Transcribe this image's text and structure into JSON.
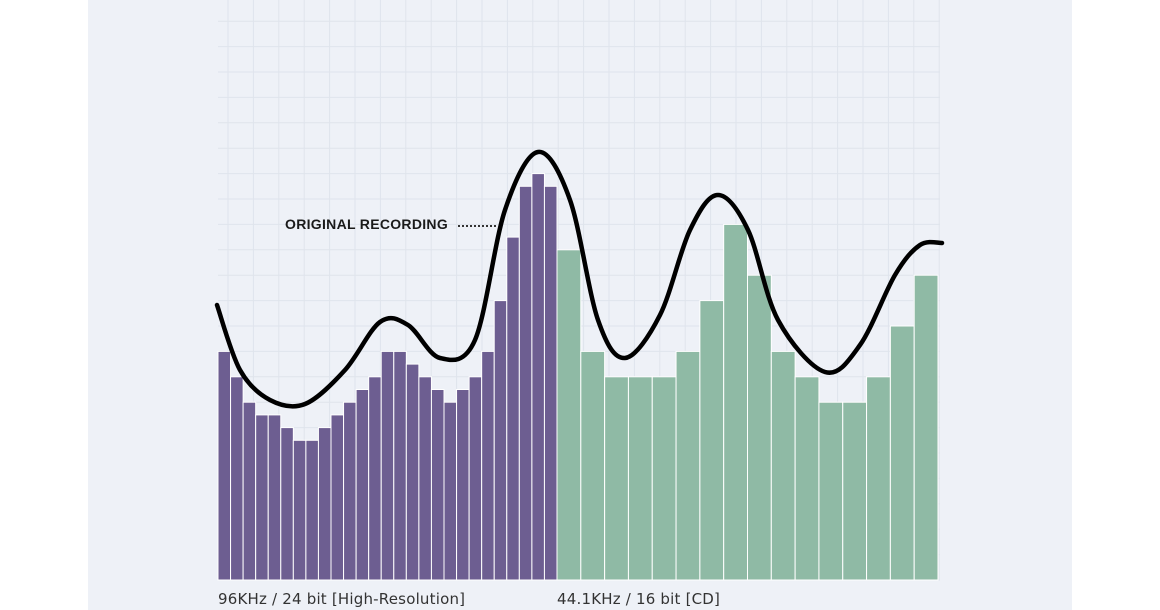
{
  "chart_data": {
    "type": "bar",
    "annotation": "ORIGINAL RECORDING",
    "colors": {
      "background": "#eef1f7",
      "grid": "#dfe4ec",
      "high_resolution": "#6d5e91",
      "cd": "#8fbaa5",
      "original_curve": "#000000"
    },
    "grid": true,
    "series": [
      {
        "name": "96KHz / 24 bit [High-Resolution]",
        "values": [
          9,
          8,
          7,
          6.5,
          6.5,
          6,
          5.5,
          5.5,
          6,
          6.5,
          7,
          7.5,
          8,
          9,
          9,
          8.5,
          8,
          7.5,
          7,
          7.5,
          8,
          9,
          11,
          13.5,
          15.5,
          16,
          15.5
        ]
      },
      {
        "name": "44.1KHz / 16 bit [CD]",
        "values": [
          13,
          9,
          8,
          8,
          8,
          9,
          11,
          14,
          12,
          9,
          8,
          7,
          7,
          8,
          10,
          12
        ]
      }
    ],
    "ylim": [
      0,
      18
    ]
  }
}
